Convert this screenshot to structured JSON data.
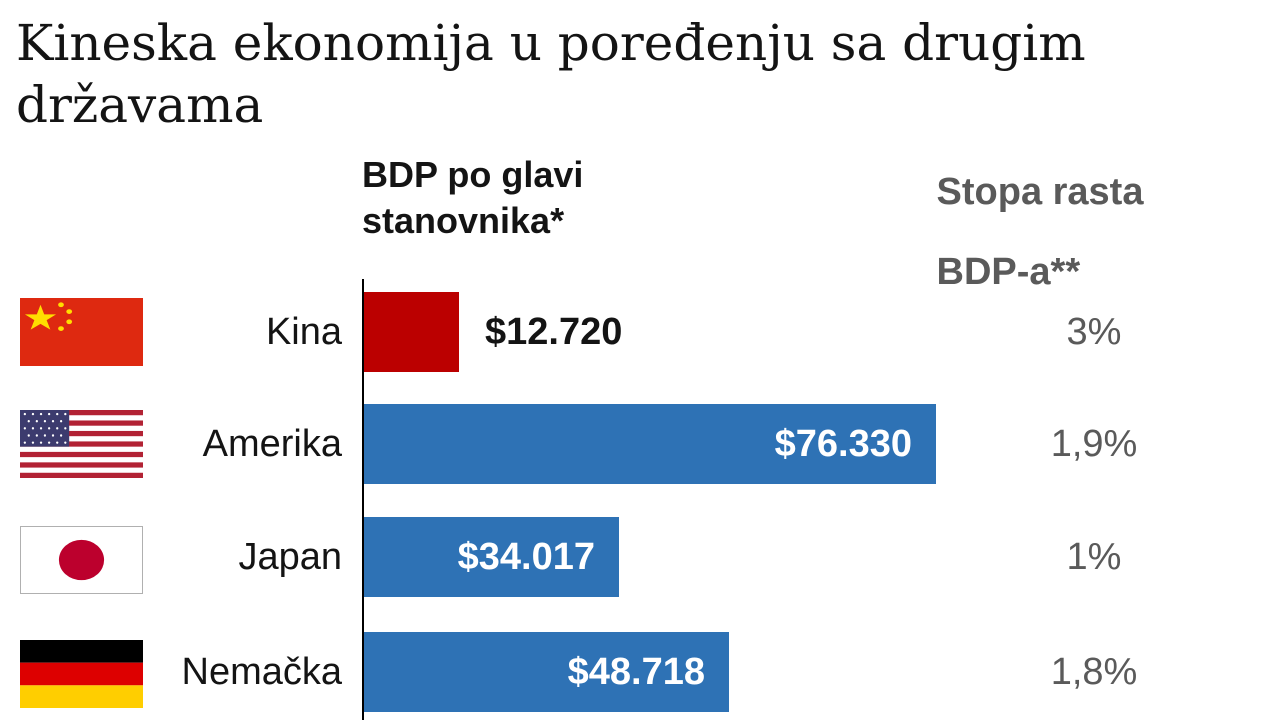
{
  "title": "Kineska ekonomija u poređenju sa drugim državama",
  "headers": {
    "gdp": [
      "BDP po glavi",
      "stanovnika*"
    ],
    "growth": [
      "Stopa rasta",
      "BDP-a**"
    ]
  },
  "colors": {
    "china_bar": "#bb0000",
    "other_bar": "#2e72b5",
    "axis": "#000000"
  },
  "chart_data": {
    "type": "bar",
    "orientation": "horizontal",
    "title": "Kineska ekonomija u poređenju sa drugim državama",
    "categories": [
      "Kina",
      "Amerika",
      "Japan",
      "Nemačka"
    ],
    "series": [
      {
        "name": "BDP po glavi stanovnika*",
        "values": [
          12720,
          76330,
          34017,
          48718
        ],
        "labels": [
          "$12.720",
          "$76.330",
          "$34.017",
          "$48.718"
        ]
      },
      {
        "name": "Stopa rasta BDP-a**",
        "values": [
          3,
          1.9,
          1,
          1.8
        ],
        "labels": [
          "3%",
          "1,9%",
          "1%",
          "1,8%"
        ]
      }
    ],
    "flags": [
      "china-flag",
      "usa-flag",
      "japan-flag",
      "germany-flag"
    ],
    "xlim": [
      0,
      76330
    ],
    "grid": false,
    "legend": "none"
  }
}
